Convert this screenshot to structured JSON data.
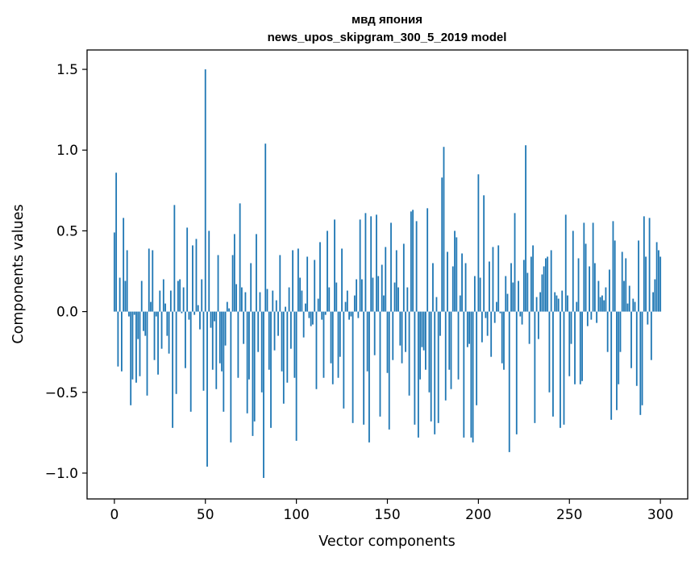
{
  "chart_data": {
    "type": "bar",
    "title": "мвд япония",
    "subtitle": "news_upos_skipgram_300_5_2019 model",
    "xlabel": "Vector components",
    "ylabel": "Components values",
    "xlim": [
      -15,
      315
    ],
    "ylim": [
      -1.16,
      1.62
    ],
    "xticks": [
      0,
      50,
      100,
      150,
      200,
      250,
      300
    ],
    "xtick_labels": [
      "0",
      "50",
      "100",
      "150",
      "200",
      "250",
      "300"
    ],
    "yticks": [
      -1.0,
      -0.5,
      0.0,
      0.5,
      1.0,
      1.5
    ],
    "ytick_labels": [
      "−1.0",
      "−0.5",
      "0.0",
      "0.5",
      "1.0",
      "1.5"
    ],
    "bar_color": "#1f77b4",
    "grid": false,
    "series": [
      {
        "name": "components",
        "values": [
          0.49,
          0.86,
          -0.34,
          0.21,
          -0.37,
          0.58,
          0.19,
          0.38,
          -0.03,
          -0.58,
          -0.42,
          -0.02,
          -0.44,
          -0.17,
          -0.4,
          0.19,
          -0.12,
          -0.15,
          -0.52,
          0.39,
          0.06,
          0.38,
          -0.3,
          -0.03,
          -0.39,
          0.13,
          -0.23,
          0.2,
          0.05,
          -0.15,
          -0.26,
          0.13,
          -0.72,
          0.66,
          -0.51,
          0.19,
          0.2,
          -0.01,
          0.15,
          -0.35,
          0.52,
          -0.05,
          -0.62,
          0.41,
          -0.02,
          0.45,
          0.04,
          -0.11,
          0.2,
          -0.49,
          1.5,
          -0.96,
          0.5,
          -0.1,
          -0.36,
          -0.06,
          -0.48,
          0.35,
          -0.32,
          -0.37,
          -0.62,
          -0.21,
          0.06,
          0.02,
          -0.81,
          0.35,
          0.48,
          0.17,
          -0.41,
          0.67,
          0.15,
          -0.2,
          0.12,
          -0.63,
          -0.42,
          0.3,
          -0.77,
          -0.68,
          0.48,
          -0.25,
          0.12,
          -0.5,
          -1.03,
          1.04,
          0.14,
          -0.36,
          -0.72,
          0.13,
          -0.24,
          0.07,
          -0.15,
          0.35,
          -0.37,
          -0.57,
          0.03,
          -0.44,
          0.15,
          -0.23,
          0.38,
          -0.41,
          -0.8,
          0.39,
          0.21,
          0.13,
          -0.16,
          0.05,
          0.34,
          -0.04,
          -0.09,
          -0.08,
          0.32,
          -0.48,
          0.08,
          0.43,
          -0.05,
          -0.41,
          -0.02,
          0.5,
          0.15,
          -0.32,
          -0.45,
          0.57,
          0.18,
          -0.41,
          -0.28,
          0.39,
          -0.6,
          0.06,
          0.13,
          -0.05,
          -0.03,
          -0.69,
          0.1,
          0.2,
          -0.04,
          0.57,
          0.2,
          -0.7,
          0.61,
          -0.37,
          -0.81,
          0.59,
          0.21,
          -0.27,
          0.6,
          0.22,
          -0.65,
          0.29,
          0.1,
          0.4,
          -0.38,
          -0.73,
          0.55,
          -0.3,
          0.18,
          0.38,
          0.15,
          -0.21,
          -0.32,
          0.42,
          -0.25,
          0.15,
          -0.52,
          0.62,
          0.63,
          -0.7,
          0.56,
          -0.78,
          -0.42,
          -0.22,
          -0.24,
          -0.36,
          0.64,
          -0.5,
          -0.68,
          0.3,
          -0.76,
          0.09,
          -0.69,
          -0.15,
          0.83,
          1.02,
          -0.55,
          0.37,
          -0.36,
          -0.48,
          0.28,
          0.5,
          0.46,
          -0.42,
          0.1,
          0.36,
          -0.78,
          0.3,
          -0.22,
          -0.2,
          -0.78,
          -0.81,
          0.22,
          -0.58,
          0.85,
          0.21,
          -0.19,
          0.72,
          -0.04,
          -0.15,
          0.31,
          -0.28,
          0.4,
          -0.07,
          0.06,
          0.41,
          -0.01,
          -0.32,
          -0.36,
          0.22,
          0.11,
          -0.87,
          0.3,
          0.18,
          0.61,
          -0.76,
          0.19,
          -0.03,
          -0.08,
          0.32,
          1.03,
          0.24,
          -0.2,
          0.34,
          0.41,
          -0.69,
          0.09,
          -0.17,
          0.12,
          0.23,
          0.28,
          0.33,
          0.34,
          -0.5,
          0.38,
          -0.65,
          0.12,
          0.1,
          0.08,
          -0.72,
          0.13,
          -0.7,
          0.6,
          0.1,
          -0.4,
          -0.2,
          0.5,
          -0.45,
          0.06,
          0.33,
          -0.45,
          -0.43,
          0.55,
          0.42,
          -0.09,
          0.28,
          -0.05,
          0.55,
          0.3,
          -0.07,
          0.19,
          0.09,
          0.1,
          0.07,
          0.15,
          -0.25,
          0.26,
          -0.67,
          0.56,
          0.44,
          -0.61,
          -0.45,
          -0.25,
          0.37,
          0.19,
          0.33,
          0.05,
          0.16,
          -0.35,
          0.08,
          0.06,
          -0.46,
          0.44,
          -0.64,
          -0.58,
          0.59,
          0.34,
          -0.08,
          0.58,
          -0.3,
          0.12,
          0.2,
          0.43,
          0.38,
          0.34
        ]
      }
    ]
  }
}
